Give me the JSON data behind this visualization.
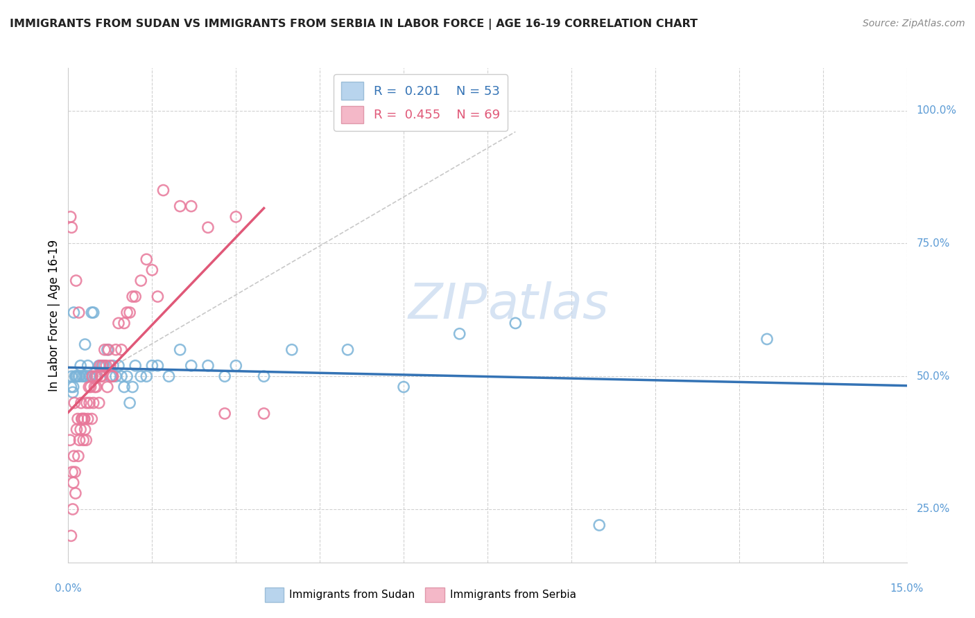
{
  "title": "IMMIGRANTS FROM SUDAN VS IMMIGRANTS FROM SERBIA IN LABOR FORCE | AGE 16-19 CORRELATION CHART",
  "source": "Source: ZipAtlas.com",
  "xlim": [
    0.0,
    15.0
  ],
  "ylim": [
    15.0,
    108.0
  ],
  "sudan_dot_color": "#7ab3d8",
  "serbia_dot_color": "#e8789a",
  "sudan_line_color": "#3473b5",
  "serbia_line_color": "#e05878",
  "sudan_R": 0.201,
  "sudan_N": 53,
  "serbia_R": 0.455,
  "serbia_N": 69,
  "sudan_points_x": [
    0.05,
    0.08,
    0.1,
    0.12,
    0.15,
    0.18,
    0.2,
    0.22,
    0.25,
    0.28,
    0.3,
    0.32,
    0.35,
    0.38,
    0.4,
    0.42,
    0.45,
    0.5,
    0.55,
    0.6,
    0.65,
    0.7,
    0.75,
    0.8,
    0.85,
    0.9,
    0.95,
    1.0,
    1.05,
    1.1,
    1.15,
    1.2,
    1.3,
    1.4,
    1.5,
    1.6,
    1.8,
    2.0,
    2.2,
    2.5,
    2.8,
    3.0,
    3.5,
    4.0,
    5.0,
    6.0,
    7.0,
    8.0,
    9.5,
    12.5,
    0.06,
    0.09,
    0.14
  ],
  "sudan_points_y": [
    48,
    47,
    62,
    50,
    50,
    50,
    50,
    52,
    50,
    50,
    56,
    50,
    52,
    50,
    50,
    62,
    62,
    50,
    52,
    52,
    52,
    55,
    50,
    52,
    50,
    52,
    50,
    48,
    50,
    45,
    48,
    52,
    50,
    50,
    52,
    52,
    50,
    55,
    52,
    52,
    50,
    52,
    50,
    55,
    55,
    48,
    58,
    60,
    22,
    57,
    50,
    48,
    50
  ],
  "serbia_points_x": [
    0.03,
    0.05,
    0.07,
    0.08,
    0.09,
    0.1,
    0.12,
    0.13,
    0.15,
    0.17,
    0.18,
    0.2,
    0.22,
    0.23,
    0.25,
    0.27,
    0.28,
    0.3,
    0.32,
    0.33,
    0.35,
    0.37,
    0.38,
    0.4,
    0.42,
    0.43,
    0.45,
    0.47,
    0.48,
    0.5,
    0.52,
    0.55,
    0.57,
    0.58,
    0.6,
    0.62,
    0.65,
    0.68,
    0.7,
    0.72,
    0.75,
    0.78,
    0.8,
    0.85,
    0.9,
    0.95,
    1.0,
    1.05,
    1.1,
    1.15,
    1.2,
    1.3,
    1.4,
    1.5,
    1.6,
    1.7,
    2.0,
    2.2,
    2.5,
    2.8,
    3.0,
    3.5,
    0.04,
    0.06,
    0.11,
    0.14,
    0.19,
    0.24,
    0.29
  ],
  "serbia_points_y": [
    38,
    20,
    32,
    25,
    30,
    35,
    32,
    28,
    40,
    42,
    35,
    38,
    40,
    45,
    42,
    38,
    42,
    40,
    38,
    45,
    42,
    48,
    45,
    48,
    42,
    50,
    45,
    48,
    50,
    48,
    50,
    45,
    52,
    50,
    50,
    52,
    55,
    52,
    48,
    55,
    52,
    50,
    50,
    55,
    60,
    55,
    60,
    62,
    62,
    65,
    65,
    68,
    72,
    70,
    65,
    85,
    82,
    82,
    78,
    43,
    80,
    43,
    80,
    78,
    45,
    68,
    62,
    42,
    42
  ]
}
